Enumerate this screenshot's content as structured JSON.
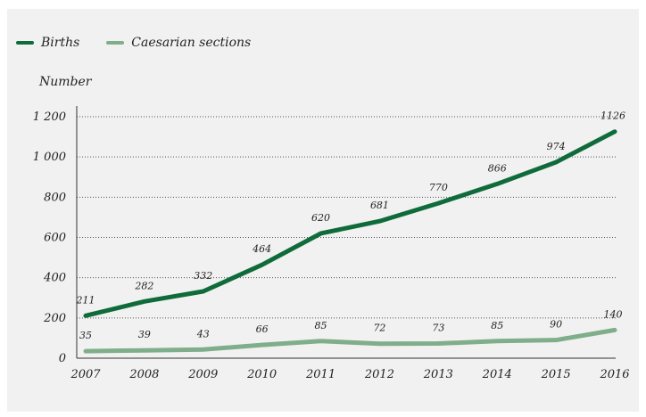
{
  "chart_data": {
    "type": "line",
    "ylabel": "Number",
    "xlabel": "",
    "title": "",
    "ylim": [
      0,
      1200
    ],
    "yticks": [
      0,
      200,
      400,
      600,
      800,
      1000,
      1200
    ],
    "ytick_labels": [
      "0",
      "200",
      "400",
      "600",
      "800",
      "1 000",
      "1 200"
    ],
    "grid": "horizontal dotted",
    "legend_position": "top-left",
    "categories": [
      "2007",
      "2008",
      "2009",
      "2010",
      "2011",
      "2012",
      "2013",
      "2014",
      "2015",
      "2016"
    ],
    "series": [
      {
        "name": "Births",
        "color": "#0f6b3a",
        "values": [
          211,
          282,
          332,
          464,
          620,
          681,
          770,
          866,
          974,
          1126
        ],
        "labels": [
          "211",
          "282",
          "332",
          "464",
          "620",
          "681",
          "770",
          "866",
          "974",
          "1126"
        ]
      },
      {
        "name": "Caesarian sections",
        "color": "#7fae8a",
        "values": [
          35,
          39,
          43,
          66,
          85,
          72,
          73,
          85,
          90,
          140
        ],
        "labels": [
          "35",
          "39",
          "43",
          "66",
          "85",
          "72",
          "73",
          "85",
          "90",
          "140"
        ]
      }
    ]
  }
}
